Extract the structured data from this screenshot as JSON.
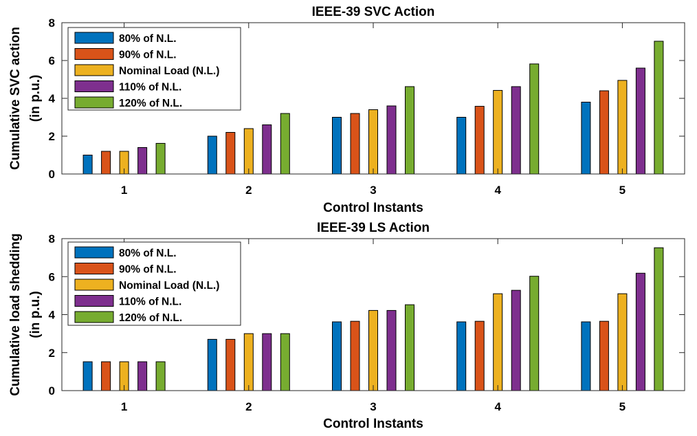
{
  "chart_data": [
    {
      "type": "bar",
      "title": "IEEE-39 SVC Action",
      "xlabel": "Control Instants",
      "ylabel_lines": [
        "Cumulative SVC action",
        "(in p.u.)"
      ],
      "categories": [
        "1",
        "2",
        "3",
        "4",
        "5"
      ],
      "ylim": [
        0,
        8
      ],
      "yticks": [
        "0",
        "2",
        "4",
        "6",
        "8"
      ],
      "grid": false,
      "legend_position": "top-left",
      "series": [
        {
          "name": "80% of N.L.",
          "color": "#0072BD",
          "values": [
            1.0,
            2.0,
            3.0,
            3.0,
            3.8
          ]
        },
        {
          "name": "90% of N.L.",
          "color": "#D95319",
          "values": [
            1.2,
            2.2,
            3.2,
            3.58,
            4.4
          ]
        },
        {
          "name": "Nominal Load (N.L.)",
          "color": "#EDB120",
          "values": [
            1.2,
            2.4,
            3.4,
            4.42,
            4.95
          ]
        },
        {
          "name": "110% of N.L.",
          "color": "#7E2F8E",
          "values": [
            1.4,
            2.6,
            3.6,
            4.62,
            5.6
          ]
        },
        {
          "name": "120% of N.L.",
          "color": "#77AC30",
          "values": [
            1.62,
            3.2,
            4.62,
            5.82,
            7.02
          ]
        }
      ]
    },
    {
      "type": "bar",
      "title": "IEEE-39 LS Action",
      "xlabel": "Control Instants",
      "ylabel_lines": [
        "Cumulative load shedding",
        "(in p.u.)"
      ],
      "categories": [
        "1",
        "2",
        "3",
        "4",
        "5"
      ],
      "ylim": [
        0,
        8
      ],
      "yticks": [
        "0",
        "2",
        "4",
        "6",
        "8"
      ],
      "grid": false,
      "legend_position": "top-left",
      "series": [
        {
          "name": "80% of N.L.",
          "color": "#0072BD",
          "values": [
            1.52,
            2.7,
            3.62,
            3.62,
            3.62
          ]
        },
        {
          "name": "90% of N.L.",
          "color": "#D95319",
          "values": [
            1.52,
            2.7,
            3.65,
            3.65,
            3.65
          ]
        },
        {
          "name": "Nominal Load (N.L.)",
          "color": "#EDB120",
          "values": [
            1.52,
            3.0,
            4.22,
            5.1,
            5.1
          ]
        },
        {
          "name": "110% of N.L.",
          "color": "#7E2F8E",
          "values": [
            1.52,
            3.0,
            4.22,
            5.28,
            6.18
          ]
        },
        {
          "name": "120% of N.L.",
          "color": "#77AC30",
          "values": [
            1.52,
            3.0,
            4.52,
            6.02,
            7.52
          ]
        }
      ]
    }
  ]
}
